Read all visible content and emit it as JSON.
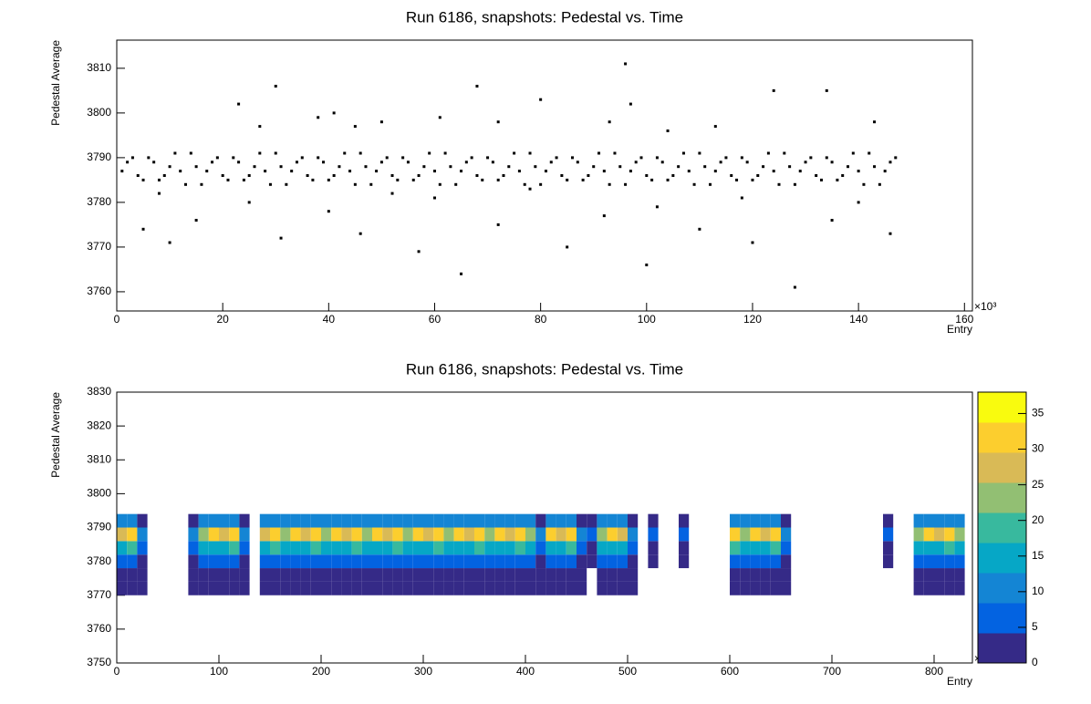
{
  "chart_data": [
    {
      "type": "scatter",
      "title": "Run 6186, snapshots: Pedestal vs. Time",
      "xlabel": "Entry",
      "ylabel": "Pedestal Average",
      "x_multiplier": "×10³",
      "color": "#000000",
      "xlim": [
        0,
        161.5
      ],
      "xticks": [
        0,
        20,
        40,
        60,
        80,
        100,
        120,
        140,
        160
      ],
      "ylim": [
        3755.7,
        3816.3
      ],
      "yticks": [
        3760,
        3770,
        3780,
        3790,
        3800,
        3810
      ],
      "x": [
        1,
        3,
        5,
        7,
        9,
        11,
        13,
        15,
        17,
        19,
        21,
        23,
        25,
        27,
        29,
        31,
        33,
        35,
        37,
        39,
        41,
        43,
        45,
        47,
        49,
        51,
        53,
        55,
        57,
        59,
        61,
        63,
        65,
        67,
        69,
        71,
        73,
        75,
        77,
        79,
        81,
        83,
        85,
        87,
        89,
        91,
        93,
        95,
        97,
        99,
        101,
        103,
        105,
        107,
        109,
        111,
        113,
        115,
        117,
        119,
        121,
        123,
        125,
        127,
        129,
        131,
        133,
        135,
        137,
        139,
        141,
        143,
        145,
        147,
        2,
        4,
        6,
        8,
        10,
        12,
        14,
        16,
        18,
        20,
        22,
        24,
        26,
        28,
        30,
        32,
        34,
        36,
        38,
        40,
        42,
        44,
        46,
        48,
        50,
        52,
        54,
        56,
        58,
        60,
        62,
        64,
        66,
        68,
        70,
        72,
        74,
        76,
        78,
        80,
        82,
        84,
        86,
        88,
        90,
        92,
        94,
        96,
        98,
        100,
        102,
        104,
        106,
        108,
        110,
        112,
        114,
        116,
        118,
        120,
        122,
        124,
        126,
        128,
        130,
        132,
        134,
        136,
        138,
        140,
        142,
        144,
        146,
        23,
        27,
        30,
        38,
        41,
        45,
        50,
        61,
        68,
        72,
        80,
        93,
        96,
        97,
        104,
        113,
        124,
        134,
        143,
        65,
        128,
        100,
        57,
        10,
        31,
        85,
        120,
        146,
        5,
        46,
        72,
        110,
        15,
        40,
        92,
        135,
        25,
        60,
        102,
        140,
        8,
        52,
        78,
        118
      ],
      "y": [
        3787,
        3790,
        3785,
        3789,
        3786,
        3791,
        3784,
        3788,
        3787,
        3790,
        3785,
        3789,
        3786,
        3791,
        3784,
        3788,
        3787,
        3790,
        3785,
        3789,
        3786,
        3791,
        3784,
        3788,
        3787,
        3790,
        3785,
        3789,
        3786,
        3791,
        3784,
        3788,
        3787,
        3790,
        3785,
        3789,
        3786,
        3791,
        3784,
        3788,
        3787,
        3790,
        3785,
        3789,
        3786,
        3791,
        3784,
        3788,
        3787,
        3790,
        3785,
        3789,
        3786,
        3791,
        3784,
        3788,
        3787,
        3790,
        3785,
        3789,
        3786,
        3791,
        3784,
        3788,
        3787,
        3790,
        3785,
        3789,
        3786,
        3791,
        3784,
        3788,
        3787,
        3790,
        3789,
        3786,
        3790,
        3785,
        3788,
        3787,
        3791,
        3784,
        3789,
        3786,
        3790,
        3785,
        3788,
        3787,
        3791,
        3784,
        3789,
        3786,
        3790,
        3785,
        3788,
        3787,
        3791,
        3784,
        3789,
        3786,
        3790,
        3785,
        3788,
        3787,
        3791,
        3784,
        3789,
        3786,
        3790,
        3785,
        3788,
        3787,
        3791,
        3784,
        3789,
        3786,
        3790,
        3785,
        3788,
        3787,
        3791,
        3784,
        3789,
        3786,
        3790,
        3785,
        3788,
        3787,
        3791,
        3784,
        3789,
        3786,
        3790,
        3785,
        3788,
        3787,
        3791,
        3784,
        3789,
        3786,
        3790,
        3785,
        3788,
        3787,
        3791,
        3784,
        3789,
        3802,
        3797,
        3806,
        3799,
        3800,
        3797,
        3798,
        3799,
        3806,
        3798,
        3803,
        3798,
        3811,
        3802,
        3796,
        3797,
        3805,
        3805,
        3798,
        3764,
        3761,
        3766,
        3769,
        3771,
        3772,
        3770,
        3771,
        3773,
        3774,
        3773,
        3775,
        3774,
        3776,
        3778,
        3777,
        3776,
        3780,
        3781,
        3779,
        3780,
        3782,
        3782,
        3783,
        3781
      ]
    },
    {
      "type": "heatmap",
      "title": "Run 6186, snapshots: Pedestal vs. Time",
      "xlabel": "Entry",
      "ylabel": "Pedestal Average",
      "x_multiplier": "×10³",
      "xlim": [
        0,
        837.5
      ],
      "xticks": [
        0,
        100,
        200,
        300,
        400,
        500,
        600,
        700,
        800
      ],
      "ylim": [
        3750,
        3830
      ],
      "yticks": [
        3750,
        3760,
        3770,
        3780,
        3790,
        3800,
        3810,
        3820,
        3830
      ],
      "zlim": [
        0,
        38
      ],
      "zticks": [
        0,
        5,
        10,
        15,
        20,
        25,
        30,
        35
      ],
      "palette": [
        "#352a87",
        "#0363e1",
        "#1485d4",
        "#06a7c6",
        "#38b99e",
        "#92bf73",
        "#d9ba56",
        "#fcce2e",
        "#f9fb0e"
      ],
      "xbins": [
        0,
        10,
        20,
        30,
        40,
        50,
        60,
        70,
        80,
        90,
        100,
        110,
        120,
        130,
        140,
        150,
        160,
        170,
        180,
        190,
        200,
        210,
        220,
        230,
        240,
        250,
        260,
        270,
        280,
        290,
        300,
        310,
        320,
        330,
        340,
        350,
        360,
        370,
        380,
        390,
        400,
        410,
        420,
        430,
        440,
        450,
        460,
        470,
        480,
        490,
        500,
        510,
        520,
        530,
        540,
        550,
        560,
        570,
        580,
        590,
        600,
        610,
        620,
        630,
        640,
        650,
        660,
        670,
        680,
        690,
        700,
        710,
        720,
        730,
        740,
        750,
        760,
        770,
        780,
        790,
        800,
        810,
        820,
        830
      ],
      "ybins": [
        3770,
        3774,
        3778,
        3782,
        3786,
        3790,
        3794
      ],
      "counts": [
        [
          2,
          4,
          6,
          15,
          28,
          11
        ],
        [
          1,
          3,
          5,
          18,
          32,
          9
        ],
        [
          1,
          1,
          2,
          6,
          10,
          4
        ],
        [
          0,
          0,
          0,
          0,
          0,
          0
        ],
        [
          0,
          0,
          0,
          0,
          0,
          0
        ],
        [
          0,
          0,
          0,
          0,
          0,
          0
        ],
        [
          0,
          0,
          0,
          0,
          0,
          0
        ],
        [
          1,
          1,
          2,
          6,
          10,
          4
        ],
        [
          2,
          3,
          7,
          13,
          24,
          12
        ],
        [
          3,
          4,
          6,
          16,
          30,
          10
        ],
        [
          2,
          4,
          6,
          15,
          28,
          11
        ],
        [
          1,
          3,
          5,
          18,
          32,
          9
        ],
        [
          1,
          1,
          2,
          6,
          10,
          4
        ],
        [
          0,
          0,
          0,
          0,
          0,
          0
        ],
        [
          2,
          4,
          6,
          15,
          28,
          11
        ],
        [
          1,
          3,
          5,
          18,
          32,
          9
        ],
        [
          2,
          3,
          7,
          13,
          24,
          12
        ],
        [
          3,
          4,
          6,
          16,
          30,
          10
        ],
        [
          2,
          4,
          6,
          15,
          28,
          11
        ],
        [
          1,
          3,
          5,
          18,
          32,
          9
        ],
        [
          2,
          3,
          7,
          13,
          24,
          12
        ],
        [
          3,
          4,
          6,
          16,
          30,
          10
        ],
        [
          2,
          4,
          6,
          15,
          28,
          11
        ],
        [
          1,
          3,
          5,
          18,
          32,
          9
        ],
        [
          2,
          3,
          7,
          13,
          24,
          12
        ],
        [
          3,
          4,
          6,
          16,
          30,
          10
        ],
        [
          2,
          4,
          6,
          15,
          28,
          11
        ],
        [
          1,
          3,
          5,
          18,
          32,
          9
        ],
        [
          2,
          3,
          7,
          13,
          24,
          12
        ],
        [
          3,
          4,
          6,
          16,
          30,
          10
        ],
        [
          2,
          4,
          6,
          15,
          28,
          11
        ],
        [
          1,
          3,
          5,
          18,
          32,
          9
        ],
        [
          2,
          3,
          7,
          13,
          24,
          12
        ],
        [
          3,
          4,
          6,
          16,
          30,
          10
        ],
        [
          2,
          4,
          6,
          15,
          28,
          11
        ],
        [
          1,
          3,
          5,
          18,
          32,
          9
        ],
        [
          2,
          3,
          7,
          13,
          24,
          12
        ],
        [
          3,
          4,
          6,
          16,
          30,
          10
        ],
        [
          2,
          4,
          6,
          15,
          28,
          11
        ],
        [
          1,
          3,
          5,
          18,
          32,
          9
        ],
        [
          2,
          3,
          7,
          13,
          24,
          12
        ],
        [
          1,
          1,
          2,
          6,
          10,
          4
        ],
        [
          3,
          4,
          6,
          16,
          30,
          10
        ],
        [
          2,
          4,
          6,
          15,
          28,
          11
        ],
        [
          1,
          3,
          5,
          18,
          32,
          9
        ],
        [
          1,
          1,
          2,
          6,
          10,
          4
        ],
        [
          0,
          0,
          1,
          3,
          5,
          2
        ],
        [
          2,
          3,
          7,
          13,
          24,
          12
        ],
        [
          3,
          4,
          6,
          16,
          30,
          10
        ],
        [
          2,
          4,
          6,
          15,
          28,
          11
        ],
        [
          1,
          1,
          2,
          6,
          10,
          4
        ],
        [
          0,
          0,
          0,
          0,
          0,
          0
        ],
        [
          0,
          0,
          1,
          3,
          5,
          2
        ],
        [
          0,
          0,
          0,
          0,
          0,
          0
        ],
        [
          0,
          0,
          0,
          0,
          0,
          0
        ],
        [
          0,
          0,
          1,
          3,
          5,
          2
        ],
        [
          0,
          0,
          0,
          0,
          0,
          0
        ],
        [
          0,
          0,
          0,
          0,
          0,
          0
        ],
        [
          0,
          0,
          0,
          0,
          0,
          0
        ],
        [
          0,
          0,
          0,
          0,
          0,
          0
        ],
        [
          1,
          3,
          5,
          18,
          32,
          9
        ],
        [
          2,
          3,
          7,
          13,
          24,
          12
        ],
        [
          3,
          4,
          6,
          16,
          30,
          10
        ],
        [
          2,
          4,
          6,
          15,
          28,
          11
        ],
        [
          1,
          3,
          5,
          18,
          32,
          9
        ],
        [
          1,
          1,
          2,
          6,
          10,
          4
        ],
        [
          0,
          0,
          0,
          0,
          0,
          0
        ],
        [
          0,
          0,
          0,
          0,
          0,
          0
        ],
        [
          0,
          0,
          0,
          0,
          0,
          0
        ],
        [
          0,
          0,
          0,
          0,
          0,
          0
        ],
        [
          0,
          0,
          0,
          0,
          0,
          0
        ],
        [
          0,
          0,
          0,
          0,
          0,
          0
        ],
        [
          0,
          0,
          0,
          0,
          0,
          0
        ],
        [
          0,
          0,
          0,
          0,
          0,
          0
        ],
        [
          0,
          0,
          0,
          0,
          0,
          0
        ],
        [
          0,
          0,
          1,
          3,
          5,
          2
        ],
        [
          0,
          0,
          0,
          0,
          0,
          0
        ],
        [
          0,
          0,
          0,
          0,
          0,
          0
        ],
        [
          2,
          3,
          7,
          13,
          24,
          12
        ],
        [
          3,
          4,
          6,
          16,
          30,
          10
        ],
        [
          2,
          4,
          6,
          15,
          28,
          11
        ],
        [
          1,
          3,
          5,
          18,
          32,
          9
        ],
        [
          2,
          3,
          7,
          13,
          24,
          12
        ]
      ]
    }
  ]
}
